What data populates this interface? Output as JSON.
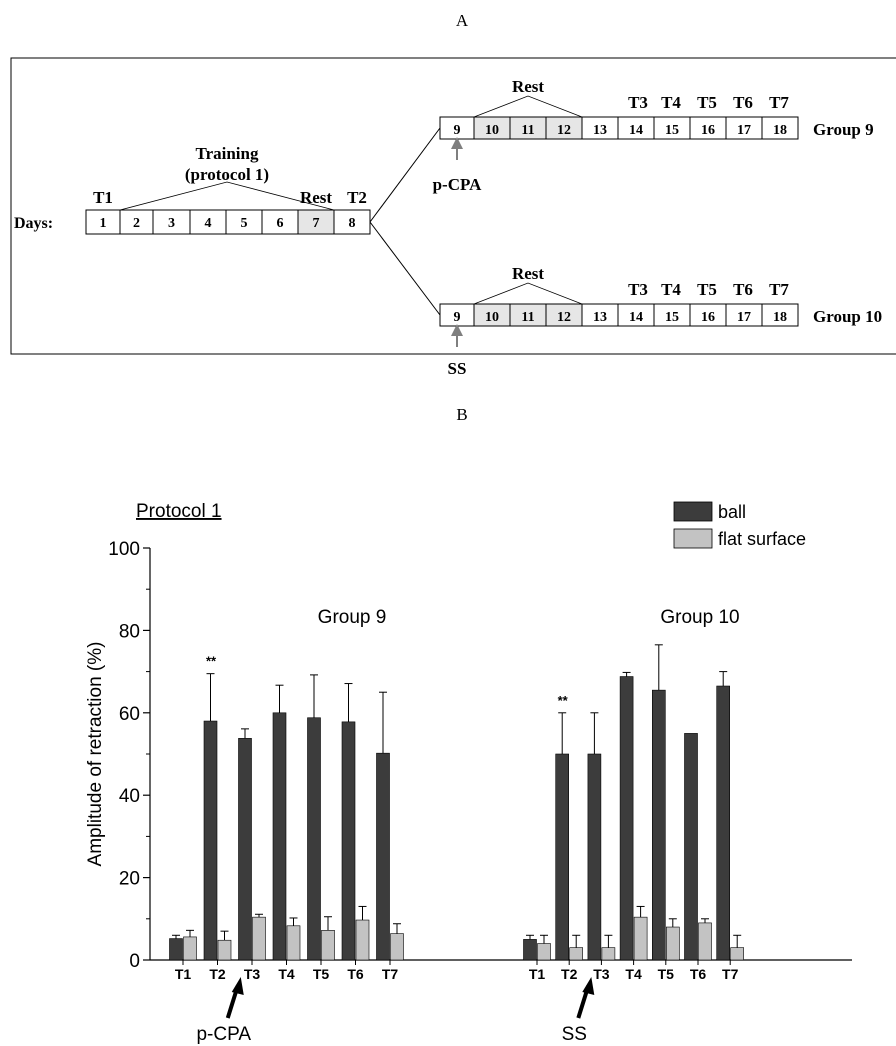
{
  "panel_a": {
    "label": "A",
    "days_label": "Days:",
    "days_main": [
      "1",
      "2",
      "3",
      "4",
      "5",
      "6",
      "7",
      "8"
    ],
    "days_group": [
      "9",
      "10",
      "11",
      "12",
      "13",
      "14",
      "15",
      "16",
      "17",
      "18"
    ],
    "t1": "T1",
    "t2": "T2",
    "rest": "Rest",
    "training_line1": "Training",
    "training_line2": "(protocol 1)",
    "tests_after": [
      "T3",
      "T4",
      "T5",
      "T6",
      "T7"
    ],
    "groups": [
      {
        "name": "Group 9",
        "drug": "p-CPA"
      },
      {
        "name": "Group 10",
        "drug": "SS"
      }
    ],
    "colors": {
      "rest_fill": "#e6e6e6",
      "arrow": "#7f7f7f"
    }
  },
  "panel_b": {
    "label": "B",
    "protocol_label": "Protocol 1",
    "significance_mark": "**",
    "arrow_labels": [
      "p-CPA",
      "SS"
    ]
  },
  "chart_data": {
    "type": "bar",
    "ylabel": "Amplitude of retraction (%)",
    "ylim": [
      0,
      100
    ],
    "yticks": [
      0,
      20,
      40,
      60,
      80,
      100
    ],
    "legend_position": "top-right",
    "grid": false,
    "colors": {
      "ball": "#3c3c3c",
      "flat surface": "#c3c3c3"
    },
    "groups": [
      {
        "name": "Group 9",
        "categories": [
          "T1",
          "T2",
          "T3",
          "T4",
          "T5",
          "T6",
          "T7"
        ],
        "series": [
          {
            "name": "ball",
            "values": [
              5.2,
              58,
              53.8,
              60,
              58.8,
              57.8,
              50.2
            ],
            "errors": [
              0.8,
              11.5,
              2.3,
              6.7,
              10.4,
              9.3,
              14.8
            ]
          },
          {
            "name": "flat surface",
            "values": [
              5.6,
              4.8,
              10.4,
              8.3,
              7.2,
              9.7,
              6.4
            ],
            "errors": [
              1.6,
              2.2,
              0.7,
              1.9,
              3.3,
              3.3,
              2.4
            ]
          }
        ],
        "annotations": [
          {
            "category": "T2",
            "text": "**"
          }
        ],
        "arrow": {
          "after": "T2",
          "label": "p-CPA"
        }
      },
      {
        "name": "Group 10",
        "categories": [
          "T1",
          "T2",
          "T3",
          "T4",
          "T5",
          "T6",
          "T7"
        ],
        "series": [
          {
            "name": "ball",
            "values": [
              5,
              50,
              50,
              68.8,
              65.5,
              55,
              66.5
            ],
            "errors": [
              1,
              10,
              10,
              1,
              11,
              0,
              3.5
            ]
          },
          {
            "name": "flat surface",
            "values": [
              4,
              3,
              3,
              10.4,
              8,
              9,
              3
            ],
            "errors": [
              2,
              3,
              3,
              2.6,
              2,
              1,
              3
            ]
          }
        ],
        "annotations": [
          {
            "category": "T2",
            "text": "**"
          }
        ],
        "arrow": {
          "after": "T2",
          "label": "SS"
        }
      }
    ]
  }
}
